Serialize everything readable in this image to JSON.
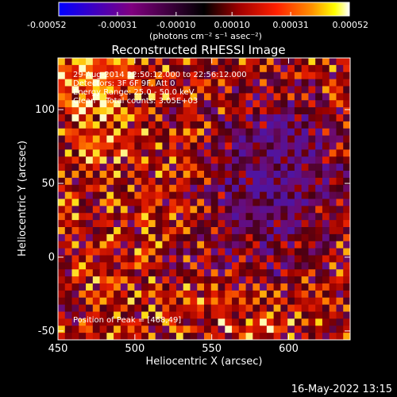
{
  "chart_data": {
    "type": "heatmap",
    "title": "Reconstructed RHESSI Image",
    "xlabel": "Heliocentric X (arcsec)",
    "ylabel": "Heliocentric Y (arcsec)",
    "xlim": [
      450,
      640
    ],
    "ylim": [
      -56,
      135
    ],
    "x_ticks": [
      450,
      500,
      550,
      600
    ],
    "y_ticks": [
      -50,
      0,
      50,
      100
    ],
    "x_tick_labels": [
      "450",
      "500",
      "550",
      "600"
    ],
    "y_tick_labels": [
      "-50",
      "0",
      "50",
      "100"
    ],
    "colorbar": {
      "ticks": [
        -0.00052,
        -0.00031,
        -0.0001,
        0.0001,
        0.00031,
        0.00052
      ],
      "tick_labels": [
        "-0.00052",
        "-0.00031",
        "-0.00010",
        "0.00010",
        "0.00031",
        "0.00052"
      ],
      "unit_label": "(photons cm⁻² s⁻¹ asec⁻²)",
      "range": [
        -0.00052,
        0.00052
      ],
      "colors": [
        "#0000ff",
        "#800080",
        "#000000",
        "#a00000",
        "#ff0000",
        "#ff8000",
        "#ffff00",
        "#ffffff"
      ]
    },
    "annotations": [
      "29-Aug-2014 22:50:12.000 to 22:56:12.000",
      "Detectors: 3F 6F 9F, Att 0",
      "Energy Range: 25.0 - 50.0 keV",
      "Clean    Total counts: 3.05E+03",
      "Position of Peak = [468,49]"
    ],
    "peak": {
      "x": 468,
      "y": 49
    },
    "grid": false,
    "legend": "none"
  },
  "footer": {
    "timestamp": "16-May-2022 13:15"
  }
}
